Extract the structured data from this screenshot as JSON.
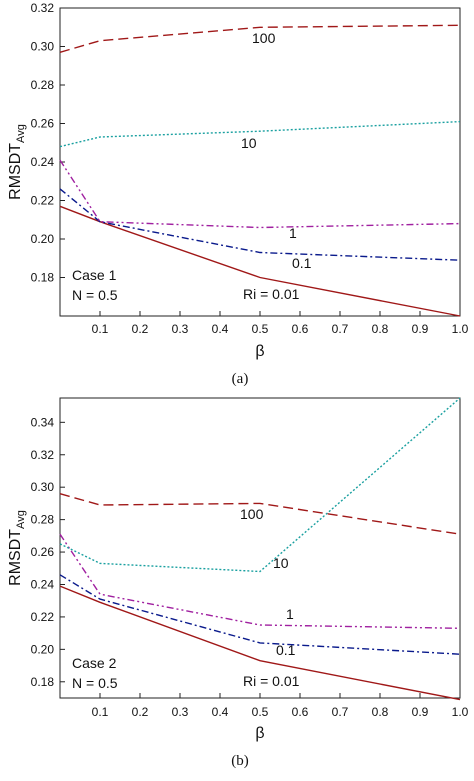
{
  "figure": {
    "panels": [
      {
        "caption": "(a)",
        "ylabel_main": "RMSDT",
        "ylabel_sub": "Avg",
        "xlabel": "β",
        "annotation_lines": [
          "Case 1",
          "N = 0.5"
        ],
        "series_label_ri": "Ri = 0.01"
      },
      {
        "caption": "(b)",
        "ylabel_main": "RMSDT",
        "ylabel_sub": "Avg",
        "xlabel": "β",
        "annotation_lines": [
          "Case 2",
          "N = 0.5"
        ],
        "series_label_ri": "Ri = 0.01"
      }
    ]
  },
  "chart_data": [
    {
      "type": "line",
      "xlabel": "β",
      "ylabel": "RMSDT_Avg",
      "xlim": [
        0.0,
        1.0
      ],
      "ylim": [
        0.16,
        0.32
      ],
      "xticks": [
        "0.1",
        "0.2",
        "0.3",
        "0.4",
        "0.5",
        "0.6",
        "0.7",
        "0.8",
        "0.9",
        "1.0"
      ],
      "yticks": [
        "0.18",
        "0.20",
        "0.22",
        "0.24",
        "0.26",
        "0.28",
        "0.30",
        "0.32"
      ],
      "x": [
        0.0,
        0.1,
        0.5,
        1.0
      ],
      "series": [
        {
          "name": "Ri = 0.01",
          "values": [
            0.217,
            0.209,
            0.18,
            0.16
          ],
          "color": "#a01818",
          "dash": "solid"
        },
        {
          "name": "0.1",
          "values": [
            0.226,
            0.209,
            0.193,
            0.189
          ],
          "color": "#0a1a8c",
          "dash": "dash-dot"
        },
        {
          "name": "1",
          "values": [
            0.241,
            0.209,
            0.206,
            0.208
          ],
          "color": "#a020a0",
          "dash": "dash-dot-dot"
        },
        {
          "name": "10",
          "values": [
            0.248,
            0.253,
            0.256,
            0.261
          ],
          "color": "#1aa0a0",
          "dash": "dot"
        },
        {
          "name": "100",
          "values": [
            0.297,
            0.303,
            0.31,
            0.311
          ],
          "color": "#a01818",
          "dash": "dash"
        }
      ]
    },
    {
      "type": "line",
      "xlabel": "β",
      "ylabel": "RMSDT_Avg",
      "xlim": [
        0.0,
        1.0
      ],
      "ylim": [
        0.17,
        0.355
      ],
      "xticks": [
        "0.1",
        "0.2",
        "0.3",
        "0.4",
        "0.5",
        "0.6",
        "0.7",
        "0.8",
        "0.9",
        "1.0"
      ],
      "yticks": [
        "0.18",
        "0.20",
        "0.22",
        "0.24",
        "0.26",
        "0.28",
        "0.30",
        "0.32",
        "0.34"
      ],
      "x": [
        0.0,
        0.1,
        0.5,
        1.0
      ],
      "series": [
        {
          "name": "Ri = 0.01",
          "values": [
            0.239,
            0.229,
            0.193,
            0.169
          ],
          "color": "#a01818",
          "dash": "solid"
        },
        {
          "name": "0.1",
          "values": [
            0.246,
            0.231,
            0.204,
            0.197
          ],
          "color": "#0a1a8c",
          "dash": "dash-dot"
        },
        {
          "name": "1",
          "values": [
            0.271,
            0.234,
            0.215,
            0.213
          ],
          "color": "#a020a0",
          "dash": "dash-dot-dot"
        },
        {
          "name": "10",
          "values": [
            0.265,
            0.253,
            0.248,
            0.355
          ],
          "color": "#1aa0a0",
          "dash": "dot"
        },
        {
          "name": "100",
          "values": [
            0.296,
            0.289,
            0.29,
            0.271
          ],
          "color": "#a01818",
          "dash": "dash"
        }
      ]
    }
  ]
}
